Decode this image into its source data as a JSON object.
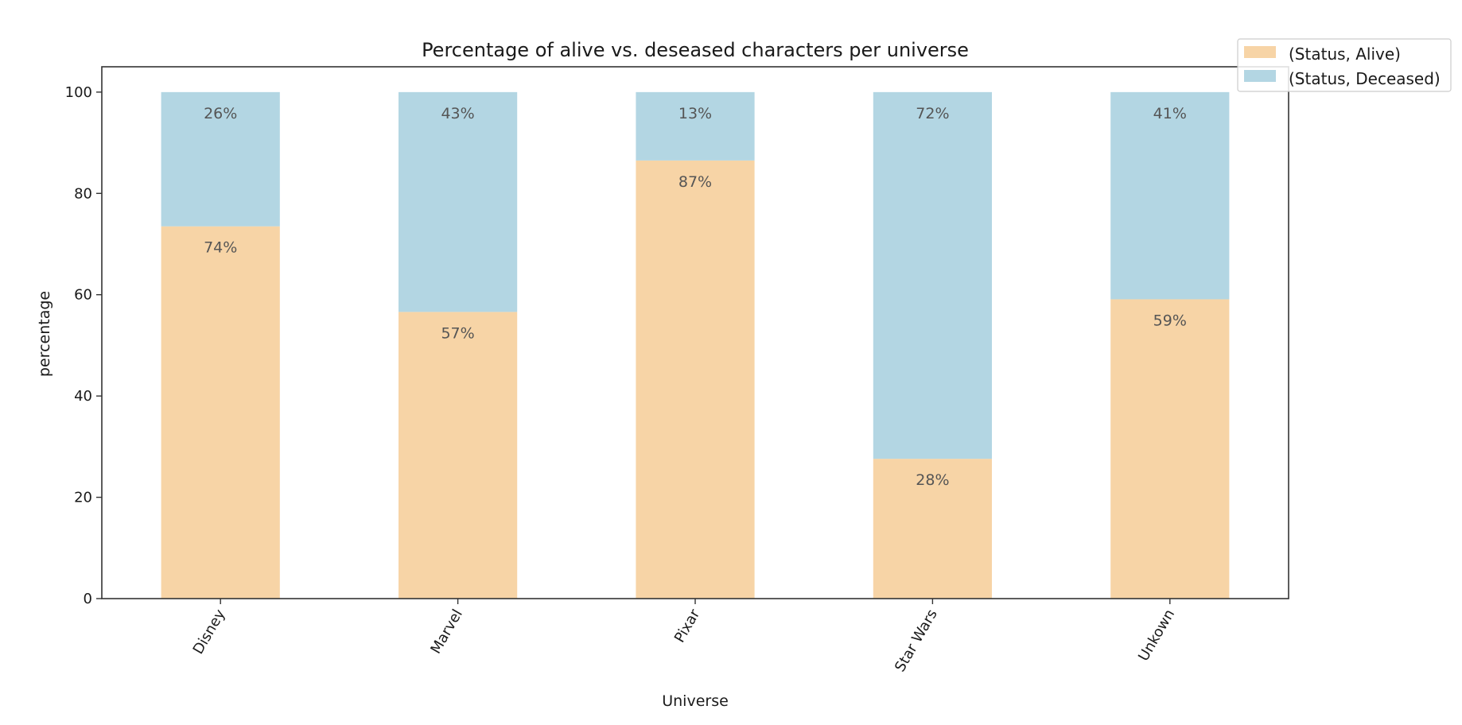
{
  "chart_data": {
    "type": "bar",
    "stacked": true,
    "title": "Percentage of alive vs. deseased characters per universe",
    "xlabel": "Universe",
    "ylabel": "percentage",
    "categories": [
      "Disney",
      "Marvel",
      "Pixar",
      "Star Wars",
      "Unkown"
    ],
    "ylim": [
      0,
      105
    ],
    "yticks": [
      0,
      20,
      40,
      60,
      80,
      100
    ],
    "grid": false,
    "legend_position": "top-right",
    "series": [
      {
        "name": "(Status, Alive)",
        "color": "#f7d4a6",
        "values": [
          73.5,
          56.6,
          86.5,
          27.6,
          59.1
        ],
        "labels": [
          "74%",
          "57%",
          "87%",
          "28%",
          "59%"
        ]
      },
      {
        "name": "(Status, Deceased)",
        "color": "#b3d6e3",
        "values": [
          26.5,
          43.4,
          13.5,
          72.4,
          40.9
        ],
        "labels": [
          "26%",
          "43%",
          "13%",
          "72%",
          "41%"
        ]
      }
    ]
  }
}
